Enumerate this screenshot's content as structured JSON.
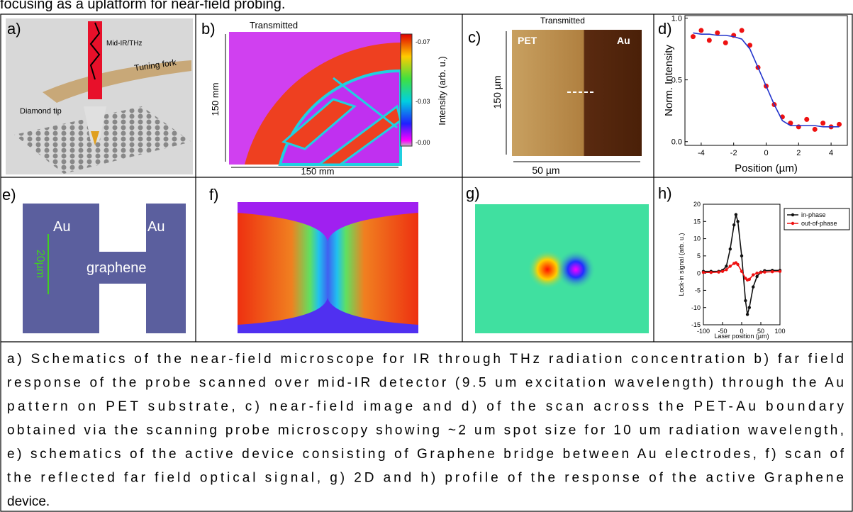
{
  "top_text": "focusing as a uplatform for near-field probing.",
  "panels": {
    "a": {
      "label": "a)",
      "beam": "Mid-IR/THz",
      "fork": "Tuning fork",
      "tip": "Diamond tip"
    },
    "b": {
      "label": "b)",
      "title": "Transmitted",
      "y_scale": "150 mm",
      "x_scale": "150 mm",
      "colorbar_ticks": [
        "-0.07",
        "-0.03",
        "-0.00"
      ],
      "colorbar_label": "Intensity (arb. u.)"
    },
    "c": {
      "label": "c)",
      "title": "Transmitted",
      "left": "PET",
      "right": "Au",
      "y_scale": "150 µm",
      "x_scale": "50 µm"
    },
    "e": {
      "label": "e)",
      "left": "Au",
      "right": "Au",
      "center": "graphene",
      "scale": "20µm"
    },
    "f": {
      "label": "f)"
    },
    "g": {
      "label": "g)"
    }
  },
  "chart_data": [
    {
      "type": "scatter",
      "label": "d)",
      "xlabel": "Position (µm)",
      "ylabel": "Norm. Intensity",
      "x": [
        -4.5,
        -4,
        -3.5,
        -3,
        -2.5,
        -2,
        -1.5,
        -1,
        -0.5,
        0,
        0.5,
        1,
        1.5,
        2,
        2.5,
        3,
        3.5,
        4,
        4.5
      ],
      "series": [
        {
          "color": "#ee1111",
          "style": "markers",
          "values": [
            0.85,
            0.9,
            0.82,
            0.88,
            0.8,
            0.86,
            0.9,
            0.78,
            0.6,
            0.45,
            0.3,
            0.2,
            0.15,
            0.12,
            0.18,
            0.1,
            0.15,
            0.12,
            0.14
          ]
        },
        {
          "color": "#2233cc",
          "style": "line",
          "values": [
            0.88,
            0.87,
            0.87,
            0.86,
            0.86,
            0.85,
            0.83,
            0.75,
            0.6,
            0.45,
            0.3,
            0.17,
            0.13,
            0.13,
            0.13,
            0.13,
            0.12,
            0.12,
            0.12
          ]
        }
      ],
      "xlim": [
        -5,
        5
      ],
      "ylim": [
        -0.03,
        1.02
      ],
      "xticks": [
        -4,
        -2,
        0,
        2,
        4
      ],
      "yticks": [
        {
          "value": 0,
          "label": "0.0"
        },
        0.5,
        {
          "value": 1,
          "label": "1.0"
        }
      ]
    },
    {
      "type": "line",
      "label": "h)",
      "xlabel": "Laser position (µm)",
      "ylabel": "Lock-in signal (arb. u.)",
      "x": [
        -100,
        -80,
        -60,
        -50,
        -40,
        -30,
        -20,
        -15,
        -10,
        0,
        10,
        15,
        20,
        30,
        40,
        50,
        60,
        80,
        100
      ],
      "series": [
        {
          "name": "in-phase",
          "color": "#111111",
          "style": "line+markers",
          "values": [
            0.5,
            0.5,
            0.5,
            0.8,
            2,
            7,
            14,
            17,
            15,
            5,
            -8,
            -12,
            -10,
            -4,
            -1,
            0.3,
            0.7,
            0.8,
            0.8
          ]
        },
        {
          "name": "out-of-phase",
          "color": "#ee1111",
          "style": "line+markers",
          "values": [
            0.2,
            0.2,
            0.3,
            0.5,
            1,
            2,
            2.8,
            3,
            2.5,
            0.5,
            -1.5,
            -2,
            -1.8,
            -0.5,
            0,
            0.2,
            0.3,
            0.4,
            0.5
          ]
        }
      ],
      "xlim": [
        -100,
        100
      ],
      "ylim": [
        -15,
        20
      ],
      "xticks": [
        -100,
        -50,
        0,
        50,
        100
      ],
      "yticks": [
        -15,
        -10,
        -5,
        0,
        5,
        10,
        15,
        20
      ],
      "legend": "upper right"
    }
  ],
  "caption": [
    "a) Schematics of the near-field microscope for IR through THz radiation concentration b) far field",
    "response of the probe scanned over mid-IR detector (9.5 um excitation wavelength) through the Au",
    "pattern on PET substrate, c) near-field image and d) of the scan across the PET-Au boundary",
    "obtained via the scanning probe microscopy showing ~2 um spot size for 10 um radiation wavelength,",
    "e) schematics of the active device consisting of Graphene bridge between Au electrodes, f) scan of",
    "the reflected far field optical signal, g) 2D and h) profile of the response of the active Graphene",
    "device."
  ]
}
